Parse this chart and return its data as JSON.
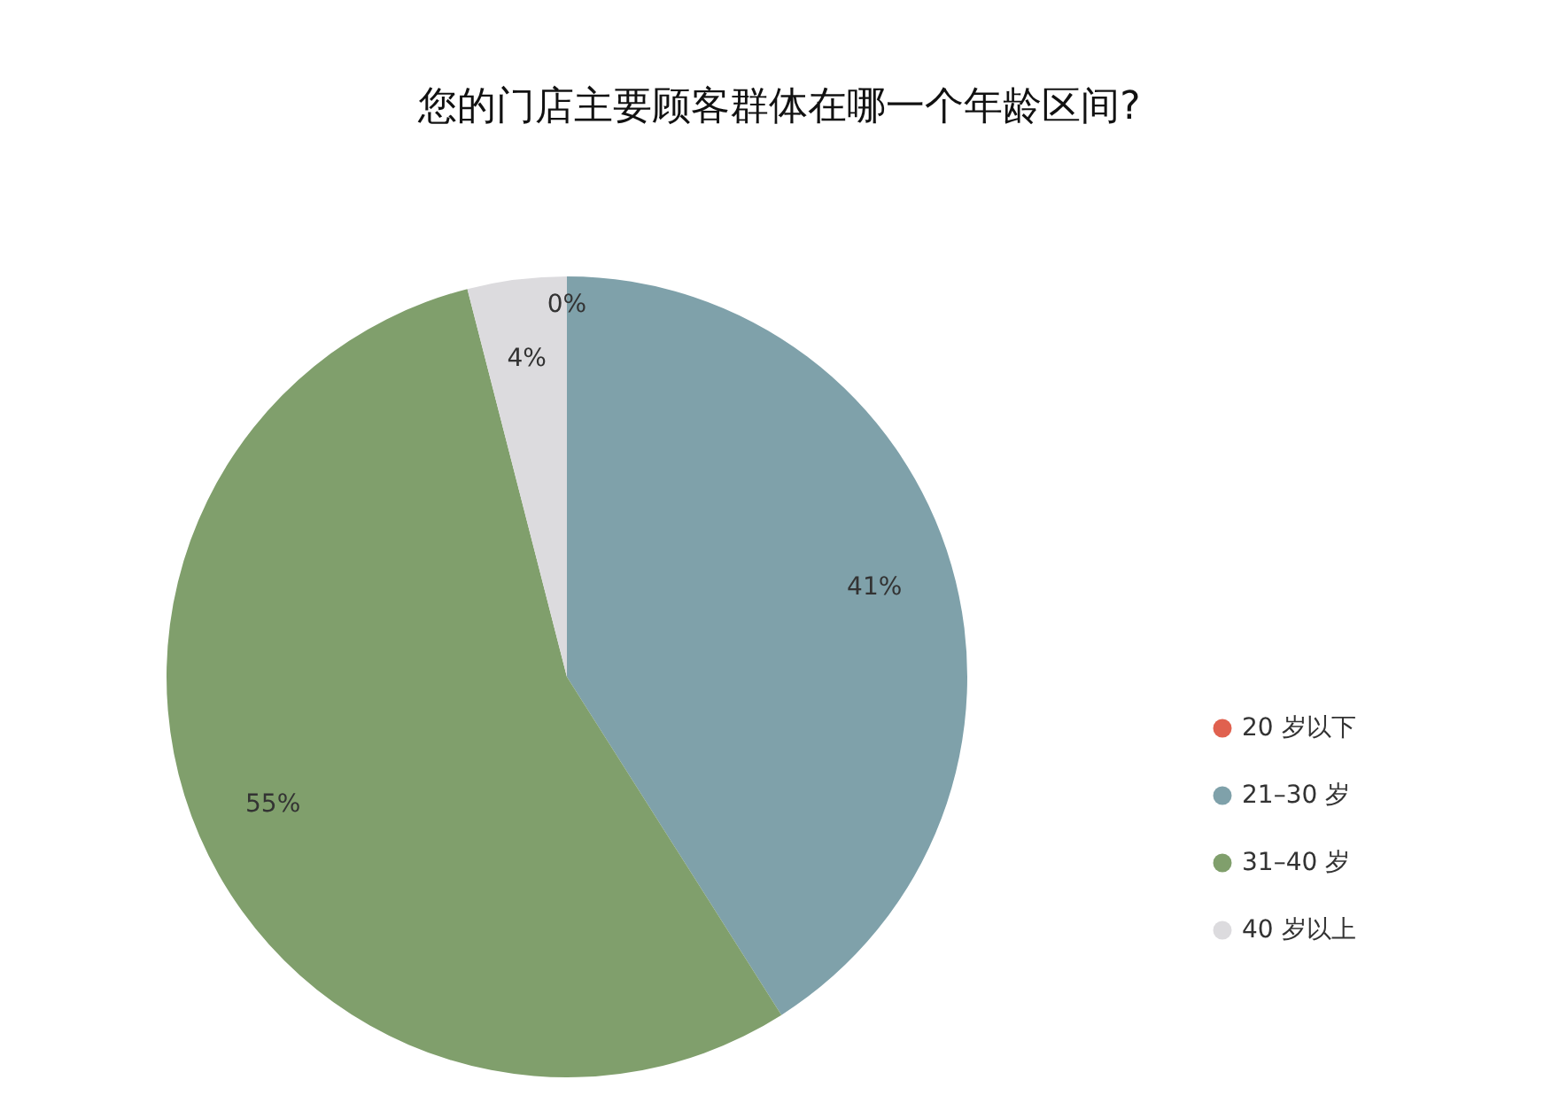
{
  "chart_data": {
    "type": "pie",
    "title": "您的门店主要顾客群体在哪一个年龄区间?",
    "categories": [
      "20 岁以下",
      "21–30 岁",
      "31–40 岁",
      "40 岁以上"
    ],
    "values": [
      0,
      41,
      55,
      4
    ],
    "colors": [
      "#e0614f",
      "#7fa1aa",
      "#809f6c",
      "#dcdbde"
    ],
    "value_labels": [
      "0%",
      "41%",
      "55%",
      "4%"
    ],
    "legend": "right"
  }
}
